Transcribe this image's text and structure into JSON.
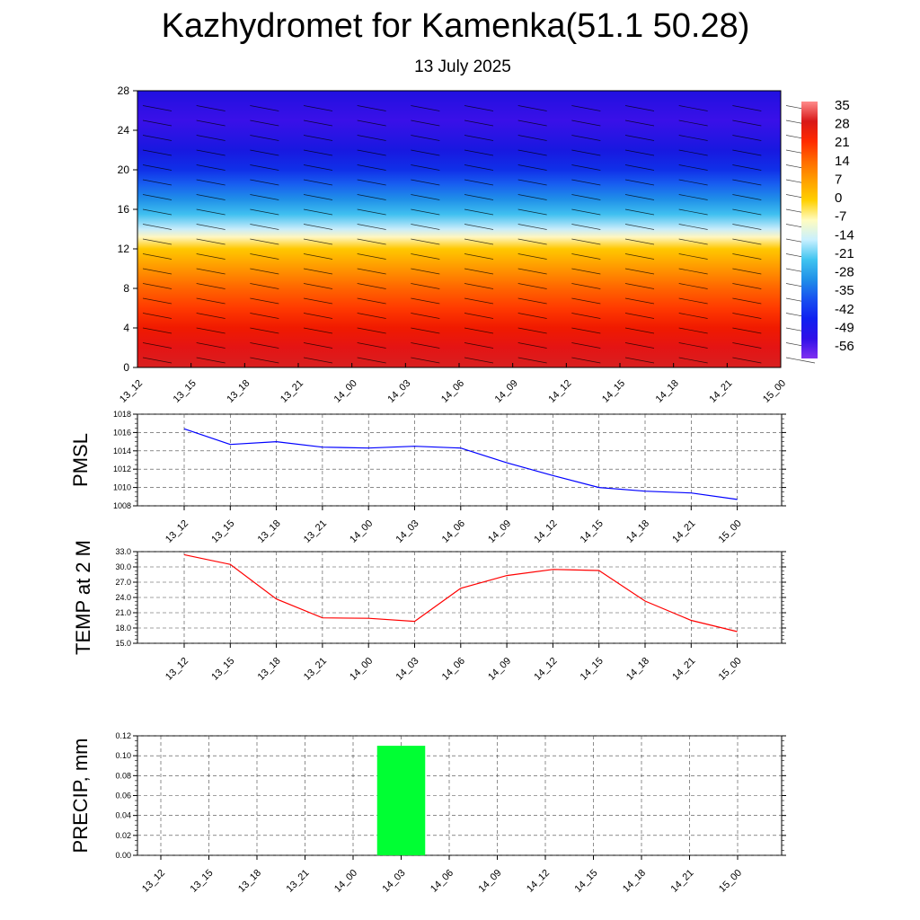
{
  "header": {
    "title": "Kazhydromet for Kamenka(51.1 50.28)",
    "date": "13 July 2025"
  },
  "time_labels": [
    "13_12",
    "13_15",
    "13_18",
    "13_21",
    "14_00",
    "14_03",
    "14_06",
    "14_09",
    "14_12",
    "14_15",
    "14_18",
    "14_21",
    "15_00"
  ],
  "chart_data": [
    {
      "type": "heatmap",
      "title": "",
      "xlabel": "",
      "ylabel": "",
      "ylim": [
        0,
        28
      ],
      "yticks": [
        "0",
        "4",
        "8",
        "12",
        "16",
        "20",
        "24",
        "28"
      ],
      "colorbar": {
        "labels": [
          "35",
          "28",
          "21",
          "14",
          "7",
          "0",
          "-7",
          "-14",
          "-21",
          "-28",
          "-35",
          "-42",
          "-49",
          "-56"
        ],
        "colors": [
          "#ff8c8c",
          "#d81818",
          "#ff2a00",
          "#ff6a00",
          "#ffa000",
          "#ffd000",
          "#fffcc0",
          "#c8f0ff",
          "#40c4f0",
          "#2090e8",
          "#1850f0",
          "#1020f0",
          "#3010e8",
          "#8030f0"
        ]
      },
      "bands": [
        {
          "level": 0,
          "color": "#d82020"
        },
        {
          "level": 2,
          "color": "#e41414"
        },
        {
          "level": 4,
          "color": "#f01a00"
        },
        {
          "level": 6,
          "color": "#ff3a00"
        },
        {
          "level": 8,
          "color": "#ff6400"
        },
        {
          "level": 10,
          "color": "#ff9600"
        },
        {
          "level": 12,
          "color": "#ffc800"
        },
        {
          "level": 13.2,
          "color": "#fff6c0"
        },
        {
          "level": 14,
          "color": "#c8ecfa"
        },
        {
          "level": 15.5,
          "color": "#40c0f0"
        },
        {
          "level": 17,
          "color": "#2090e8"
        },
        {
          "level": 18.5,
          "color": "#1860f0"
        },
        {
          "level": 20,
          "color": "#1030e8"
        },
        {
          "level": 22,
          "color": "#1818e0"
        },
        {
          "level": 25,
          "color": "#3a10e8"
        },
        {
          "level": 28,
          "color": "#2010e0"
        }
      ]
    },
    {
      "type": "line",
      "title": "",
      "xlabel": "",
      "ylabel": "PMSL",
      "ylim": [
        1008,
        1018
      ],
      "yticks": [
        "1008",
        "1010",
        "1012",
        "1014",
        "1016",
        "1018"
      ],
      "color": "#0000ff",
      "series": [
        {
          "values": [
            1016.4,
            1014.7,
            1015.0,
            1014.4,
            1014.3,
            1014.5,
            1014.3,
            1012.7,
            1011.3,
            1010.0,
            1009.6,
            1009.4,
            1008.7
          ]
        }
      ]
    },
    {
      "type": "line",
      "title": "",
      "xlabel": "",
      "ylabel": "TEMP at 2 M",
      "ylim": [
        15,
        33
      ],
      "yticks": [
        "15.0",
        "18.0",
        "21.0",
        "24.0",
        "27.0",
        "30.0",
        "33.0"
      ],
      "color": "#ff0000",
      "series": [
        {
          "values": [
            32.4,
            30.5,
            23.7,
            20.0,
            19.9,
            19.3,
            25.8,
            28.3,
            29.5,
            29.3,
            23.3,
            19.5,
            17.3
          ]
        }
      ]
    },
    {
      "type": "bar",
      "title": "",
      "xlabel": "",
      "ylabel": "PRECIP, mm",
      "ylim": [
        0,
        0.12
      ],
      "yticks": [
        "0.00",
        "0.02",
        "0.04",
        "0.06",
        "0.08",
        "0.10",
        "0.12"
      ],
      "color": "#00ff33",
      "values": [
        0,
        0,
        0,
        0,
        0,
        0.11,
        0,
        0,
        0,
        0,
        0,
        0,
        0
      ]
    }
  ]
}
